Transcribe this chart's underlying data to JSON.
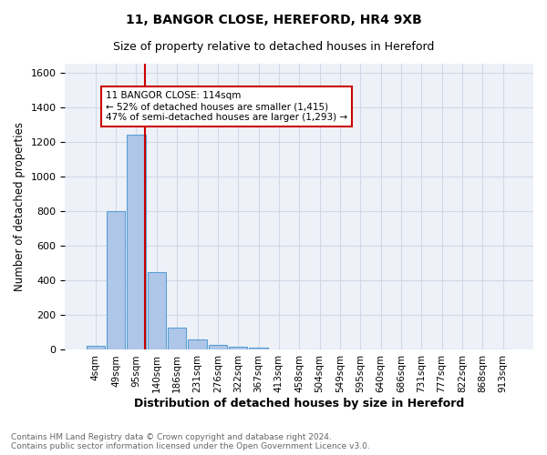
{
  "title1": "11, BANGOR CLOSE, HEREFORD, HR4 9XB",
  "title2": "Size of property relative to detached houses in Hereford",
  "xlabel": "Distribution of detached houses by size in Hereford",
  "ylabel": "Number of detached properties",
  "bin_labels": [
    "4sqm",
    "49sqm",
    "95sqm",
    "140sqm",
    "186sqm",
    "231sqm",
    "276sqm",
    "322sqm",
    "367sqm",
    "413sqm",
    "458sqm",
    "504sqm",
    "549sqm",
    "595sqm",
    "640sqm",
    "686sqm",
    "731sqm",
    "777sqm",
    "822sqm",
    "868sqm",
    "913sqm"
  ],
  "bar_values": [
    25,
    800,
    1240,
    450,
    130,
    62,
    27,
    18,
    15,
    0,
    0,
    0,
    0,
    0,
    0,
    0,
    0,
    0,
    0,
    0,
    0
  ],
  "bar_color": "#aec6e8",
  "bar_edgecolor": "#5a9fd4",
  "bar_linewidth": 0.8,
  "vline_color": "#cc0000",
  "annotation_text": "11 BANGOR CLOSE: 114sqm\n← 52% of detached houses are smaller (1,415)\n47% of semi-detached houses are larger (1,293) →",
  "annotation_boxcolor": "white",
  "annotation_edgecolor": "#cc0000",
  "ylim": [
    0,
    1650
  ],
  "yticks": [
    0,
    200,
    400,
    600,
    800,
    1000,
    1200,
    1400,
    1600
  ],
  "grid_color": "#d0d8e8",
  "bg_color": "#eef2f8",
  "footer_text": "Contains HM Land Registry data © Crown copyright and database right 2024.\nContains public sector information licensed under the Open Government Licence v3.0."
}
